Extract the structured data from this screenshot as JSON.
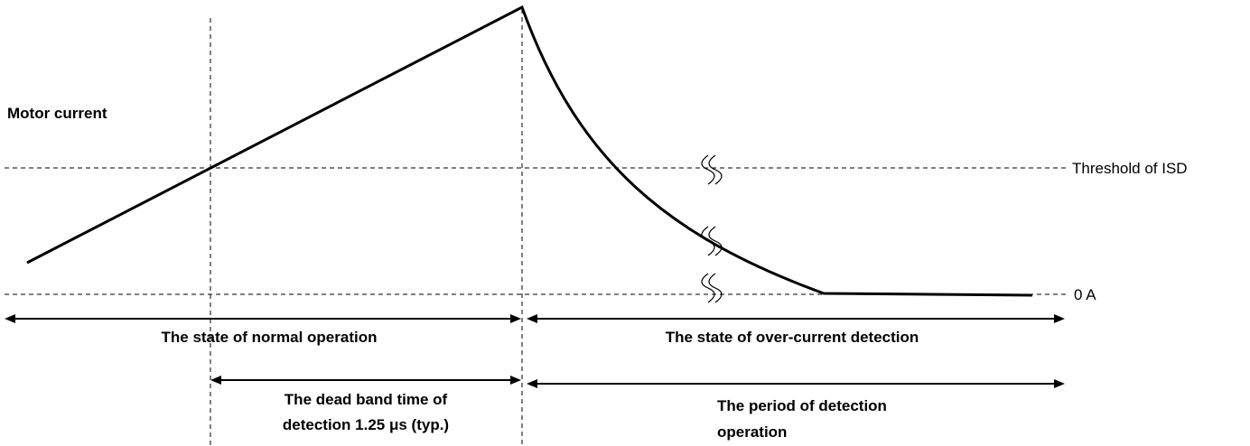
{
  "axis_label": "Motor current",
  "levels": {
    "threshold": "Threshold of ISD",
    "zero": "0 A"
  },
  "spans": [
    {
      "lines": [
        "The state of normal operation"
      ]
    },
    {
      "lines": [
        "The state of over-current detection"
      ]
    },
    {
      "lines": [
        "The dead band time of",
        "detection 1.25 μs (typ.)"
      ]
    },
    {
      "lines": [
        "The period of detection",
        "operation"
      ]
    }
  ]
}
